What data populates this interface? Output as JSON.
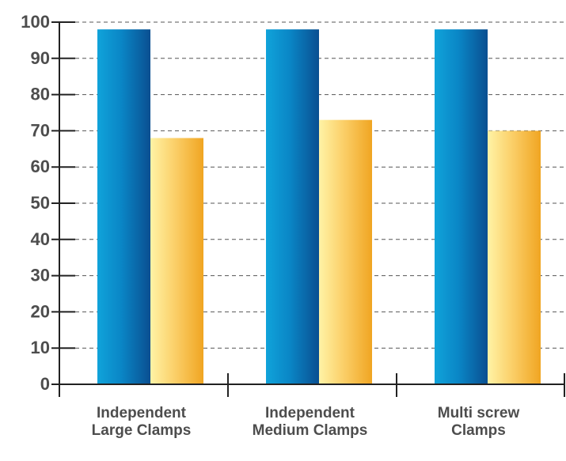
{
  "chart_data": {
    "type": "bar",
    "categories": [
      [
        "Independent",
        "Large Clamps"
      ],
      [
        "Independent",
        "Medium Clamps"
      ],
      [
        "Multi screw",
        "Clamps"
      ]
    ],
    "series": [
      {
        "values": [
          98,
          98,
          98
        ],
        "color": "#0a7fc0"
      },
      {
        "values": [
          68,
          73,
          70
        ],
        "color": "#f5b93c"
      }
    ],
    "ylim": [
      0,
      100
    ],
    "yticks": [
      0,
      10,
      20,
      30,
      40,
      50,
      60,
      70,
      80,
      90,
      100
    ],
    "grid": true,
    "legend": "none"
  }
}
